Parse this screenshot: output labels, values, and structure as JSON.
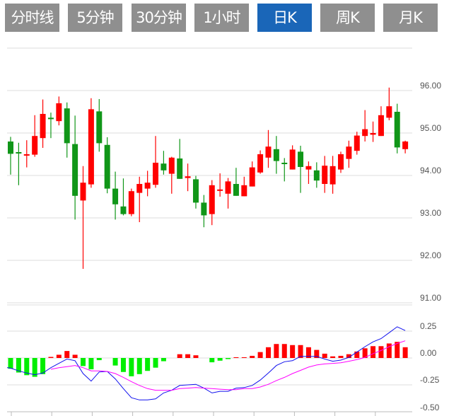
{
  "tabs": [
    {
      "label": "分时线",
      "active": false
    },
    {
      "label": "5分钟",
      "active": false
    },
    {
      "label": "30分钟",
      "active": false
    },
    {
      "label": "1小时",
      "active": false
    },
    {
      "label": "日K",
      "active": true
    },
    {
      "label": "周K",
      "active": false
    },
    {
      "label": "月K",
      "active": false
    }
  ],
  "colors": {
    "tab_bg": "#8f8f8f",
    "tab_active": "#1a66b8",
    "up": "#ff0000",
    "down": "#109618",
    "hist_up": "#ff0000",
    "hist_down": "#00ee00",
    "dif": "#1010ee",
    "dea": "#ff00ff",
    "grid": "#dddddd"
  },
  "chart_data": [
    {
      "type": "candlestick",
      "title": "",
      "ylim": [
        91,
        97
      ],
      "y_ticks": [
        "96.00",
        "95.00",
        "94.00",
        "93.00",
        "92.00",
        "91.00"
      ],
      "y_tick_values": [
        96,
        95,
        94,
        93,
        92,
        91
      ],
      "grid": true,
      "ohlc": [
        [
          94.8,
          94.91,
          94.02,
          94.51
        ],
        [
          94.55,
          94.77,
          93.77,
          94.53
        ],
        [
          94.48,
          94.83,
          94.19,
          94.5
        ],
        [
          94.49,
          95.42,
          94.44,
          94.93
        ],
        [
          94.88,
          95.79,
          94.65,
          95.45
        ],
        [
          95.36,
          95.48,
          94.88,
          95.34
        ],
        [
          95.28,
          95.86,
          95.18,
          95.7
        ],
        [
          95.58,
          95.72,
          94.42,
          94.76
        ],
        [
          94.74,
          95.41,
          92.96,
          93.52
        ],
        [
          93.41,
          94.22,
          91.8,
          93.83
        ],
        [
          93.79,
          95.82,
          93.71,
          95.56
        ],
        [
          95.51,
          95.8,
          94.56,
          94.76
        ],
        [
          94.72,
          94.9,
          93.58,
          93.69
        ],
        [
          93.69,
          94.09,
          92.96,
          93.32
        ],
        [
          93.27,
          93.93,
          93.06,
          93.09
        ],
        [
          93.09,
          93.69,
          93.04,
          93.63
        ],
        [
          93.59,
          93.97,
          92.9,
          93.8
        ],
        [
          93.69,
          94.11,
          93.51,
          93.83
        ],
        [
          93.78,
          94.93,
          93.71,
          94.3
        ],
        [
          94.28,
          94.58,
          94.02,
          94.12
        ],
        [
          94.04,
          94.44,
          93.57,
          94.42
        ],
        [
          94.4,
          94.86,
          93.92,
          93.92
        ],
        [
          93.94,
          94.28,
          93.63,
          93.98
        ],
        [
          93.91,
          93.99,
          93.22,
          93.36
        ],
        [
          93.36,
          93.54,
          92.78,
          93.06
        ],
        [
          93.09,
          93.89,
          92.83,
          93.77
        ],
        [
          93.66,
          94.05,
          93.5,
          93.67
        ],
        [
          93.57,
          93.94,
          93.22,
          93.86
        ],
        [
          93.8,
          94.18,
          93.52,
          93.52
        ],
        [
          93.51,
          93.97,
          93.51,
          93.77
        ],
        [
          93.74,
          94.33,
          93.74,
          94.19
        ],
        [
          94.07,
          94.59,
          94.04,
          94.5
        ],
        [
          94.42,
          95.07,
          94.18,
          94.68
        ],
        [
          94.62,
          94.93,
          94.04,
          94.34
        ],
        [
          94.3,
          94.41,
          93.86,
          94.27
        ],
        [
          94.14,
          94.71,
          94.14,
          94.61
        ],
        [
          94.56,
          94.7,
          93.59,
          94.2
        ],
        [
          94.14,
          94.33,
          93.8,
          94.22
        ],
        [
          94.12,
          94.31,
          93.71,
          93.88
        ],
        [
          93.8,
          94.46,
          93.59,
          94.23
        ],
        [
          93.79,
          94.46,
          93.57,
          94.22
        ],
        [
          94.14,
          94.56,
          94.06,
          94.5
        ],
        [
          94.39,
          94.82,
          94.18,
          94.68
        ],
        [
          94.58,
          95.03,
          94.49,
          94.94
        ],
        [
          94.93,
          95.54,
          94.8,
          95.09
        ],
        [
          94.96,
          95.27,
          94.79,
          95.0
        ],
        [
          94.93,
          95.63,
          94.93,
          95.42
        ],
        [
          95.36,
          96.07,
          95.3,
          95.63
        ],
        [
          95.5,
          95.69,
          94.52,
          94.66
        ],
        [
          94.62,
          94.82,
          94.52,
          94.8
        ]
      ]
    },
    {
      "type": "macd",
      "ylim": [
        -0.5,
        0.3
      ],
      "y_ticks": [
        "0.25",
        "0.00",
        "-0.25",
        "-0.50"
      ],
      "y_tick_values": [
        0.25,
        0,
        -0.25,
        -0.5
      ],
      "histogram": [
        -0.1,
        -0.135,
        -0.16,
        -0.175,
        -0.15,
        0.01,
        0.03,
        0.065,
        0.03,
        -0.075,
        -0.105,
        -0.02,
        0,
        -0.07,
        -0.13,
        -0.17,
        -0.15,
        -0.12,
        -0.09,
        -0.03,
        0,
        0.035,
        0.035,
        0.025,
        0,
        -0.04,
        -0.025,
        -0.01,
        0.007,
        0.007,
        0.02,
        0.055,
        0.1,
        0.13,
        0.13,
        0.12,
        0.12,
        0.1,
        0.075,
        0.04,
        0.015,
        0.02,
        0.035,
        0.06,
        0.09,
        0.11,
        0.11,
        0.135,
        0.15,
        0.1
      ],
      "dif": [
        -0.095,
        -0.12,
        -0.14,
        -0.155,
        -0.14,
        -0.09,
        -0.05,
        -0.01,
        -0.025,
        -0.145,
        -0.215,
        -0.13,
        -0.125,
        -0.195,
        -0.285,
        -0.37,
        -0.39,
        -0.39,
        -0.38,
        -0.325,
        -0.3,
        -0.255,
        -0.25,
        -0.245,
        -0.28,
        -0.325,
        -0.31,
        -0.31,
        -0.28,
        -0.275,
        -0.255,
        -0.205,
        -0.14,
        -0.07,
        -0.035,
        -0.025,
        0.015,
        0.015,
        0.015,
        -0.01,
        -0.03,
        -0.02,
        0.005,
        0.055,
        0.105,
        0.15,
        0.18,
        0.235,
        0.29,
        0.255
      ],
      "dea": [
        null,
        null,
        null,
        null,
        null,
        -0.105,
        -0.09,
        -0.08,
        -0.07,
        -0.09,
        -0.12,
        -0.12,
        -0.125,
        -0.145,
        -0.18,
        -0.22,
        -0.255,
        -0.285,
        -0.3,
        -0.3,
        -0.3,
        -0.285,
        -0.28,
        -0.275,
        -0.28,
        -0.285,
        -0.29,
        -0.295,
        -0.295,
        -0.285,
        -0.285,
        -0.27,
        -0.245,
        -0.21,
        -0.18,
        -0.145,
        -0.115,
        -0.085,
        -0.065,
        -0.055,
        -0.05,
        -0.045,
        -0.03,
        -0.015,
        0.005,
        0.04,
        0.07,
        0.105,
        0.135,
        0.16
      ]
    }
  ]
}
